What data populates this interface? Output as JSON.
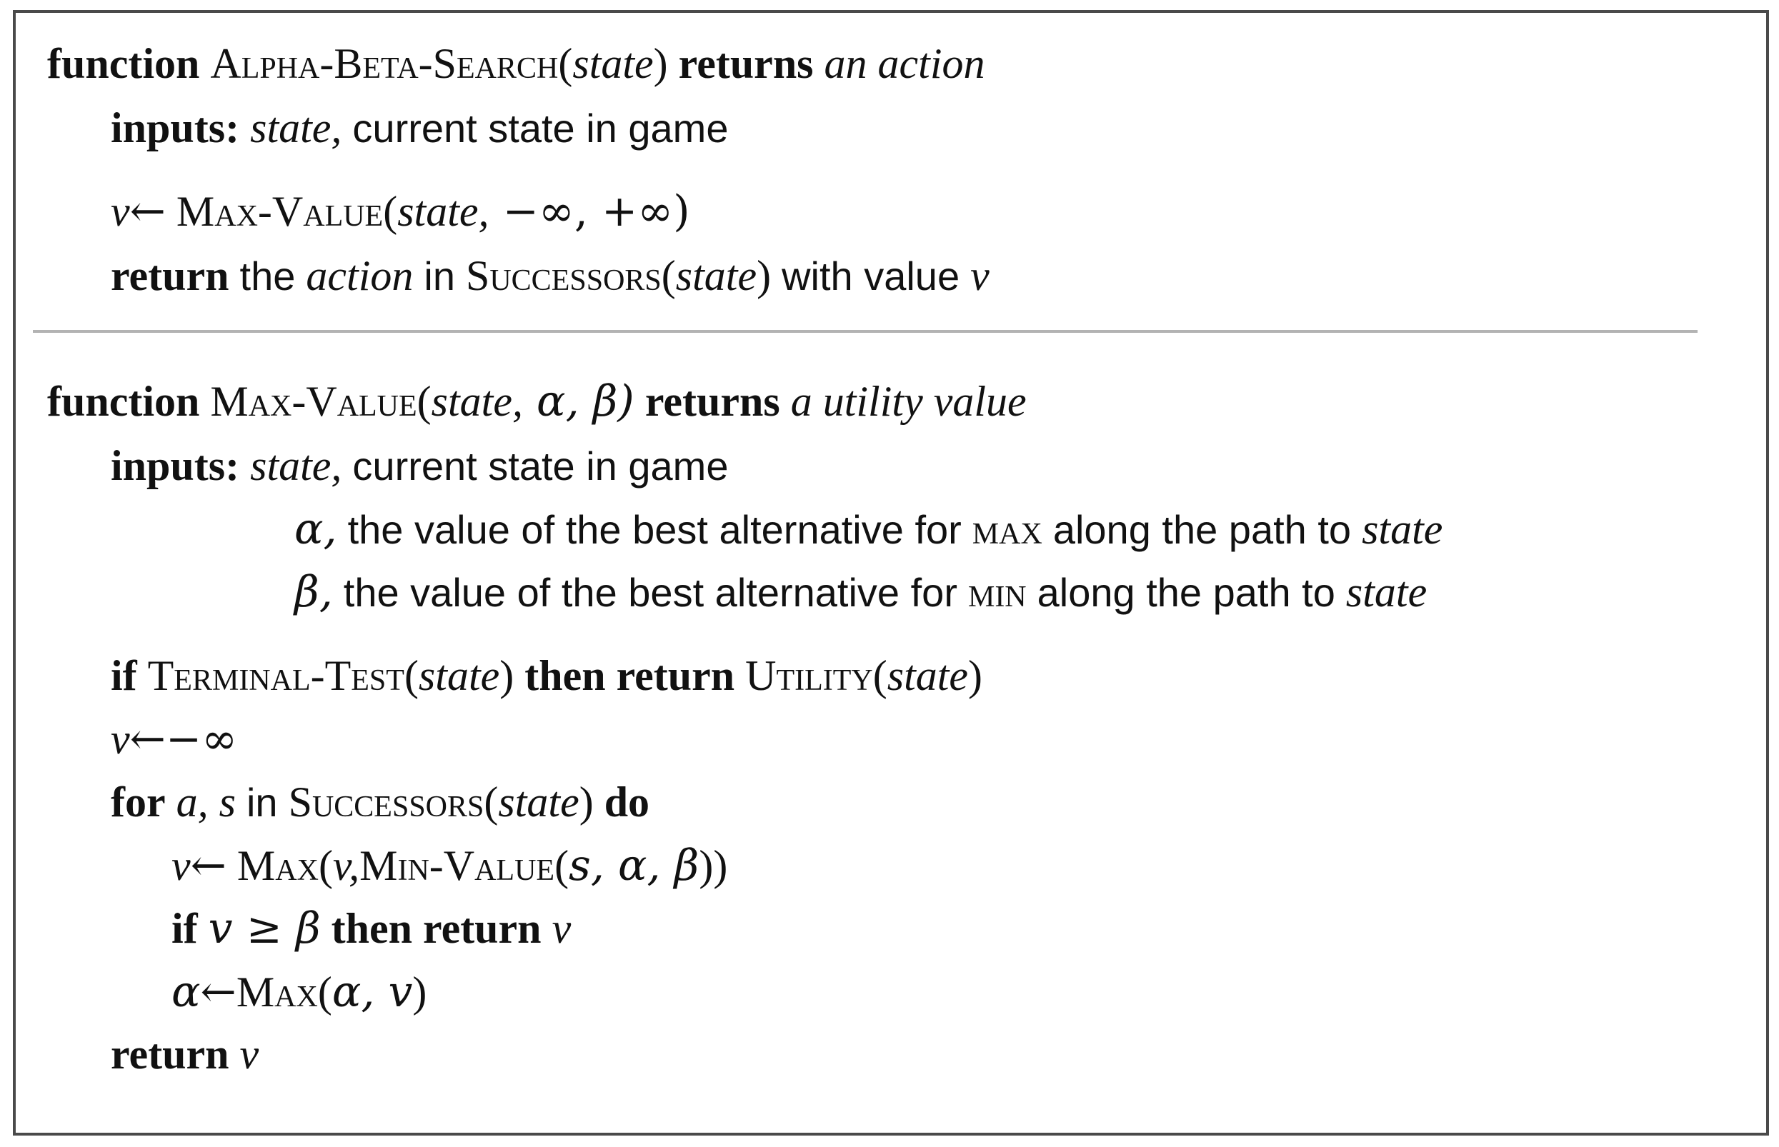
{
  "alpha_beta_search": {
    "header": {
      "keyword": "function",
      "name": "Alpha-Beta-Search",
      "open": "(",
      "param": "state",
      "close": ")",
      "returns_kw": "returns",
      "return_type": "an action"
    },
    "inputs": {
      "label": "inputs:",
      "param": "state,",
      "desc": "current state in game"
    },
    "assign": {
      "var": "v",
      "arrow": "←",
      "fn": "Max-Value",
      "args_open": "(",
      "arg_state": "state,",
      "args_rest": " −∞, +∞)"
    },
    "return_line": {
      "keyword": "return",
      "the": "the",
      "action": "action",
      "in": "in",
      "fn": "Successors",
      "open": "(",
      "param": "state",
      "close": ")",
      "with_value": "with value",
      "var": "v"
    }
  },
  "max_value": {
    "header": {
      "keyword": "function",
      "name": "Max-Value",
      "open": "(",
      "param": "state,",
      "params_rest": " α, β)",
      "returns_kw": "returns",
      "return_type": "a utility value"
    },
    "inputs": {
      "label": "inputs:",
      "param": "state,",
      "desc": "current state in game",
      "alpha": {
        "sym": "α,",
        "desc": "the value of the best alternative for",
        "player": "max",
        "along": "along the path to",
        "target": "state"
      },
      "beta": {
        "sym": "β,",
        "desc": "the value of the best alternative for",
        "player": "min",
        "along": "along the path to",
        "target": "state"
      }
    },
    "terminal_line": {
      "if": "if",
      "fn": "Terminal-Test",
      "open": "(",
      "param": "state",
      "close": ")",
      "then_return": "then return",
      "utility_fn": "Utility",
      "u_open": "(",
      "u_param": "state",
      "u_close": ")"
    },
    "init_line": {
      "var": "v",
      "arrow": "←",
      "value": "−∞"
    },
    "for_line": {
      "for": "for",
      "vars": "a, s",
      "in": "in",
      "fn": "Successors",
      "open": "(",
      "param": "state",
      "close": ")",
      "do": "do"
    },
    "update_v": {
      "var": "v",
      "arrow": "←",
      "fn": "Max",
      "open": "(",
      "arg_v": "v,",
      "min_fn": "Min-Value",
      "min_open": "(",
      "min_args": "s, α, β",
      "close": "))"
    },
    "prune_line": {
      "if": "if",
      "cond": "v ≥ β",
      "then_return": "then return",
      "var": "v"
    },
    "update_alpha": {
      "var": "α",
      "arrow": "←",
      "fn": "Max",
      "open": "(",
      "args": "α, v",
      "close": ")"
    },
    "return_line": {
      "keyword": "return",
      "var": "v"
    }
  }
}
